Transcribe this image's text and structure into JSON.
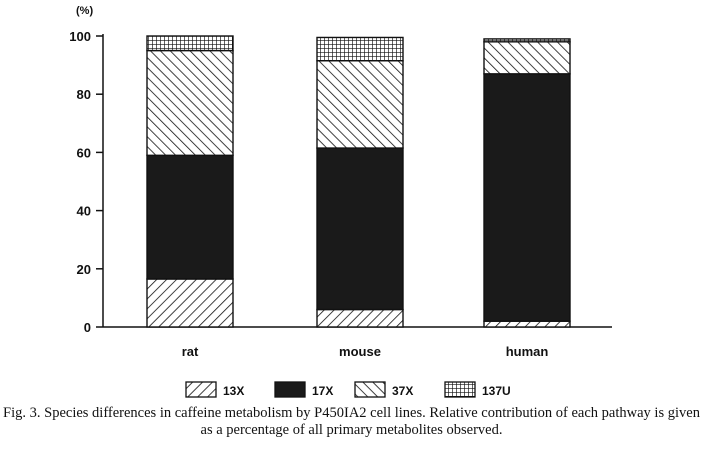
{
  "chart_data": {
    "type": "bar",
    "stacked": true,
    "y_unit": "(%)",
    "ylim": [
      0,
      100
    ],
    "yticks": [
      0,
      20,
      40,
      60,
      80,
      100
    ],
    "categories": [
      "rat",
      "mouse",
      "human"
    ],
    "series": [
      {
        "name": "13X",
        "values": [
          16.5,
          6,
          2
        ],
        "pattern": "hatch-forward"
      },
      {
        "name": "17X",
        "values": [
          42.5,
          55.5,
          85
        ],
        "pattern": "solid"
      },
      {
        "name": "37X",
        "values": [
          36,
          30,
          11
        ],
        "pattern": "hatch-back"
      },
      {
        "name": "137U",
        "values": [
          5,
          8,
          1
        ],
        "pattern": "grid"
      }
    ],
    "legend_position": "bottom",
    "grid": false
  },
  "caption": "Fig. 3. Species differences in caffeine metabolism by P450IA2 cell lines. Relative contribution of each pathway is given as a percentage of all primary metabolites observed."
}
